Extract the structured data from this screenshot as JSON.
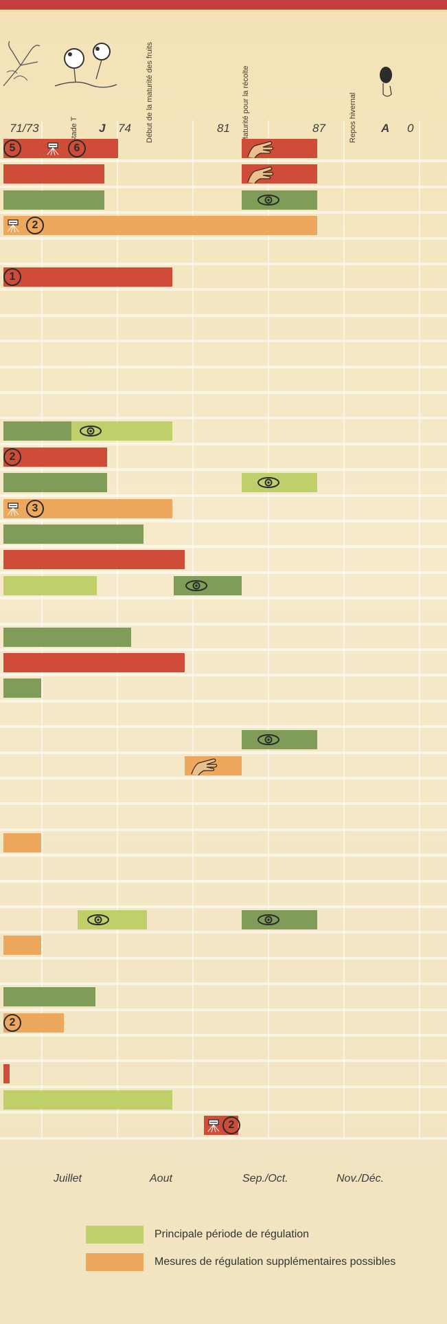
{
  "chart_data": {
    "type": "bar",
    "x_ticks": [
      {
        "label": "71/73",
        "bold": false
      },
      {
        "label": "J",
        "bold": true
      },
      {
        "label": "74",
        "bold": false
      },
      {
        "label": "81",
        "bold": false
      },
      {
        "label": "87",
        "bold": false
      },
      {
        "label": "A",
        "bold": true
      },
      {
        "label": "0",
        "bold": false
      }
    ],
    "stage_labels": [
      "Stade T",
      "Début de la maturité des fruits",
      "Maturité pour la récolte",
      "Repos hivernal"
    ],
    "months": [
      "Juillet",
      "Aout",
      "Sep./Oct.",
      "Nov./Déc."
    ],
    "legend": [
      {
        "label": "Principale période de régulation",
        "color": "#bfd06a"
      },
      {
        "label": "Mesures de régulation supplémentaires possibles",
        "color": "#eda85e"
      }
    ],
    "colors": {
      "red": "#cf4d38",
      "dark_green": "#7f9c58",
      "light_green": "#bfd06a",
      "orange": "#eda85e",
      "top_rule": "#c63d3f",
      "background": "#f6e8c2"
    },
    "rows": [
      {
        "segments": [
          {
            "color": "red",
            "start": 0,
            "end": 1.52
          },
          {
            "color": "red",
            "start": 3.15,
            "end": 4.15
          }
        ],
        "marks": [
          {
            "type": "number",
            "value": "5",
            "at": 0
          },
          {
            "type": "spray",
            "at": 0.55
          },
          {
            "type": "number",
            "value": "6",
            "at": 0.85
          },
          {
            "type": "hand",
            "at": 3.2
          }
        ]
      },
      {
        "segments": [
          {
            "color": "red",
            "start": 0,
            "end": 1.34
          },
          {
            "color": "red",
            "start": 3.15,
            "end": 4.15
          }
        ],
        "marks": [
          {
            "type": "hand",
            "at": 3.2
          }
        ]
      },
      {
        "segments": [
          {
            "color": "dark_green",
            "start": 0,
            "end": 1.34
          },
          {
            "color": "dark_green",
            "start": 3.15,
            "end": 4.15
          }
        ],
        "marks": [
          {
            "type": "eye",
            "at": 3.35
          }
        ]
      },
      {
        "segments": [
          {
            "color": "orange",
            "start": 0,
            "end": 4.15
          }
        ],
        "marks": [
          {
            "type": "spray",
            "at": 0.03
          },
          {
            "type": "number",
            "value": "2",
            "at": 0.3
          }
        ]
      },
      {
        "segments": [],
        "marks": []
      },
      {
        "segments": [
          {
            "color": "red",
            "start": 0,
            "end": 2.24
          }
        ],
        "marks": [
          {
            "type": "number",
            "value": "1",
            "at": 0
          }
        ]
      },
      {
        "segments": [],
        "marks": []
      },
      {
        "segments": [],
        "marks": []
      },
      {
        "segments": [],
        "marks": []
      },
      {
        "segments": [],
        "marks": []
      },
      {
        "segments": [],
        "marks": []
      },
      {
        "segments": [
          {
            "color": "dark_green",
            "start": 0,
            "end": 0.9
          },
          {
            "color": "light_green",
            "start": 0.9,
            "end": 2.24
          }
        ],
        "marks": [
          {
            "type": "eye",
            "at": 1.0
          }
        ]
      },
      {
        "segments": [
          {
            "color": "red",
            "start": 0,
            "end": 1.37
          }
        ],
        "marks": [
          {
            "type": "number",
            "value": "2",
            "at": 0
          }
        ]
      },
      {
        "segments": [
          {
            "color": "dark_green",
            "start": 0,
            "end": 1.37
          },
          {
            "color": "light_green",
            "start": 3.15,
            "end": 4.15
          }
        ],
        "marks": [
          {
            "type": "eye",
            "at": 3.35
          }
        ]
      },
      {
        "segments": [
          {
            "color": "orange",
            "start": 0,
            "end": 2.24
          }
        ],
        "marks": [
          {
            "type": "spray",
            "at": 0.03
          },
          {
            "type": "number",
            "value": "3",
            "at": 0.3
          }
        ]
      },
      {
        "segments": [
          {
            "color": "dark_green",
            "start": 0,
            "end": 1.85
          }
        ],
        "marks": []
      },
      {
        "segments": [
          {
            "color": "red",
            "start": 0,
            "end": 2.4
          }
        ],
        "marks": []
      },
      {
        "segments": [
          {
            "color": "light_green",
            "start": 0,
            "end": 1.24
          },
          {
            "color": "dark_green",
            "start": 2.25,
            "end": 3.15
          }
        ],
        "marks": [
          {
            "type": "eye",
            "at": 2.4
          }
        ]
      },
      {
        "segments": [],
        "marks": []
      },
      {
        "segments": [
          {
            "color": "dark_green",
            "start": 0,
            "end": 1.69
          }
        ],
        "marks": []
      },
      {
        "segments": [
          {
            "color": "red",
            "start": 0,
            "end": 2.4
          }
        ],
        "marks": []
      },
      {
        "segments": [
          {
            "color": "dark_green",
            "start": 0,
            "end": 0.5
          }
        ],
        "marks": []
      },
      {
        "segments": [],
        "marks": []
      },
      {
        "segments": [
          {
            "color": "dark_green",
            "start": 3.15,
            "end": 4.15
          }
        ],
        "marks": [
          {
            "type": "eye",
            "at": 3.35
          }
        ]
      },
      {
        "segments": [
          {
            "color": "orange",
            "start": 2.4,
            "end": 3.15
          }
        ],
        "marks": [
          {
            "type": "hand",
            "at": 2.45
          }
        ]
      },
      {
        "segments": [],
        "marks": []
      },
      {
        "segments": [],
        "marks": []
      },
      {
        "segments": [
          {
            "color": "orange",
            "start": 0,
            "end": 0.5
          }
        ],
        "marks": []
      },
      {
        "segments": [],
        "marks": []
      },
      {
        "segments": [],
        "marks": []
      },
      {
        "segments": [
          {
            "color": "light_green",
            "start": 0.98,
            "end": 1.9
          },
          {
            "color": "dark_green",
            "start": 3.15,
            "end": 4.15
          }
        ],
        "marks": [
          {
            "type": "eye",
            "at": 1.1
          },
          {
            "type": "eye",
            "at": 3.35
          }
        ]
      },
      {
        "segments": [
          {
            "color": "orange",
            "start": 0,
            "end": 0.5
          }
        ],
        "marks": []
      },
      {
        "segments": [],
        "marks": []
      },
      {
        "segments": [
          {
            "color": "dark_green",
            "start": 0,
            "end": 1.22
          }
        ],
        "marks": []
      },
      {
        "segments": [
          {
            "color": "orange",
            "start": 0,
            "end": 0.8
          }
        ],
        "marks": [
          {
            "type": "number",
            "value": "2",
            "at": 0
          }
        ]
      },
      {
        "segments": [],
        "marks": []
      },
      {
        "segments": [
          {
            "color": "red",
            "start": 0,
            "end": 0.08
          }
        ],
        "marks": []
      },
      {
        "segments": [
          {
            "color": "light_green",
            "start": 0,
            "end": 2.24
          }
        ],
        "marks": []
      },
      {
        "segments": [
          {
            "color": "red",
            "start": 2.65,
            "end": 3.1
          }
        ],
        "marks": [
          {
            "type": "spray",
            "at": 2.68
          },
          {
            "type": "number",
            "value": "2",
            "at": 2.9
          }
        ]
      }
    ]
  }
}
